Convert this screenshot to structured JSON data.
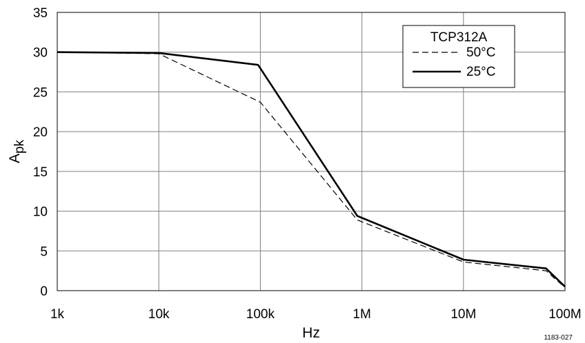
{
  "chart_data": {
    "type": "line",
    "xscale": "log",
    "xlabel": "Hz",
    "ylabel": "A",
    "ylabel_sub": "pk",
    "xlim": [
      1000,
      100000000
    ],
    "ylim": [
      0,
      35
    ],
    "x_ticks": [
      {
        "value": 1000,
        "label": "1k"
      },
      {
        "value": 10000,
        "label": "10k"
      },
      {
        "value": 100000,
        "label": "100k"
      },
      {
        "value": 1000000,
        "label": "1M"
      },
      {
        "value": 10000000,
        "label": "10M"
      },
      {
        "value": 100000000,
        "label": "100M"
      }
    ],
    "y_ticks": [
      0,
      5,
      10,
      15,
      20,
      25,
      30,
      35
    ],
    "grid": true,
    "legend_position": "top-right",
    "legend_title": "TCP312A",
    "series": [
      {
        "name": "50°C",
        "style": "dashed",
        "x": [
          1000,
          10000,
          100000,
          900000,
          10000000,
          65000000,
          100000000
        ],
        "y": [
          30,
          29.8,
          23.7,
          8.9,
          3.6,
          2.5,
          0.4
        ]
      },
      {
        "name": "25°C",
        "style": "solid",
        "x": [
          1000,
          10000,
          95000,
          900000,
          10000000,
          65000000,
          100000000
        ],
        "y": [
          30,
          29.9,
          28.4,
          9.4,
          3.9,
          2.8,
          0.5
        ]
      }
    ],
    "annotation": "1183-027"
  }
}
